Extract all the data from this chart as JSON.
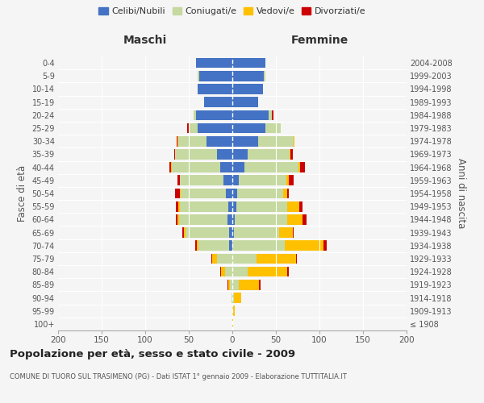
{
  "age_groups": [
    "100+",
    "95-99",
    "90-94",
    "85-89",
    "80-84",
    "75-79",
    "70-74",
    "65-69",
    "60-64",
    "55-59",
    "50-54",
    "45-49",
    "40-44",
    "35-39",
    "30-34",
    "25-29",
    "20-24",
    "15-19",
    "10-14",
    "5-9",
    "0-4"
  ],
  "birth_years": [
    "≤ 1908",
    "1909-1913",
    "1914-1918",
    "1919-1923",
    "1924-1928",
    "1929-1933",
    "1934-1938",
    "1939-1943",
    "1944-1948",
    "1949-1953",
    "1954-1958",
    "1959-1963",
    "1964-1968",
    "1969-1973",
    "1974-1978",
    "1979-1983",
    "1984-1988",
    "1989-1993",
    "1994-1998",
    "1999-2003",
    "2004-2008"
  ],
  "colors": {
    "celibi": "#4472c4",
    "coniugati": "#c5d9a0",
    "vedovi": "#ffc000",
    "divorziati": "#cc0000",
    "background": "#f5f5f5"
  },
  "maschi": {
    "celibi": [
      0,
      0,
      0,
      0,
      0,
      0,
      4,
      4,
      6,
      5,
      7,
      10,
      14,
      18,
      30,
      40,
      42,
      32,
      40,
      38,
      42
    ],
    "coniugati": [
      0,
      0,
      1,
      3,
      8,
      18,
      35,
      50,
      55,
      55,
      52,
      50,
      55,
      48,
      32,
      10,
      2,
      0,
      0,
      2,
      0
    ],
    "vedovi": [
      0,
      0,
      0,
      2,
      5,
      5,
      2,
      2,
      2,
      2,
      1,
      0,
      1,
      0,
      1,
      0,
      0,
      0,
      0,
      0,
      0
    ],
    "divorziati": [
      0,
      0,
      0,
      1,
      1,
      1,
      2,
      1,
      2,
      3,
      6,
      3,
      2,
      1,
      1,
      2,
      0,
      0,
      0,
      0,
      0
    ]
  },
  "femmine": {
    "celibi": [
      0,
      0,
      0,
      0,
      0,
      0,
      0,
      2,
      3,
      5,
      6,
      7,
      14,
      18,
      30,
      38,
      42,
      30,
      35,
      36,
      38
    ],
    "coniugati": [
      0,
      1,
      2,
      7,
      18,
      28,
      60,
      52,
      60,
      58,
      52,
      55,
      62,
      48,
      40,
      18,
      3,
      0,
      0,
      2,
      0
    ],
    "vedovi": [
      1,
      2,
      8,
      24,
      45,
      45,
      45,
      15,
      18,
      14,
      5,
      3,
      2,
      1,
      1,
      0,
      0,
      0,
      0,
      0,
      0
    ],
    "divorziati": [
      0,
      0,
      0,
      1,
      2,
      1,
      3,
      1,
      4,
      4,
      2,
      5,
      5,
      2,
      0,
      0,
      2,
      0,
      0,
      0,
      0
    ]
  },
  "title": "Popolazione per età, sesso e stato civile - 2009",
  "subtitle": "COMUNE DI TUORO SUL TRASIMENO (PG) - Dati ISTAT 1° gennaio 2009 - Elaborazione TUTTITALIA.IT",
  "xlabel_left": "Maschi",
  "xlabel_right": "Femmine",
  "ylabel_left": "Fasce di età",
  "ylabel_right": "Anni di nascita",
  "legend_labels": [
    "Celibi/Nubili",
    "Coniugati/e",
    "Vedovi/e",
    "Divorziati/e"
  ],
  "xlim": 200,
  "xticks": [
    -200,
    -150,
    -100,
    -50,
    0,
    50,
    100,
    150,
    200
  ],
  "xticklabels": [
    "200",
    "150",
    "100",
    "50",
    "0",
    "50",
    "100",
    "150",
    "200"
  ]
}
